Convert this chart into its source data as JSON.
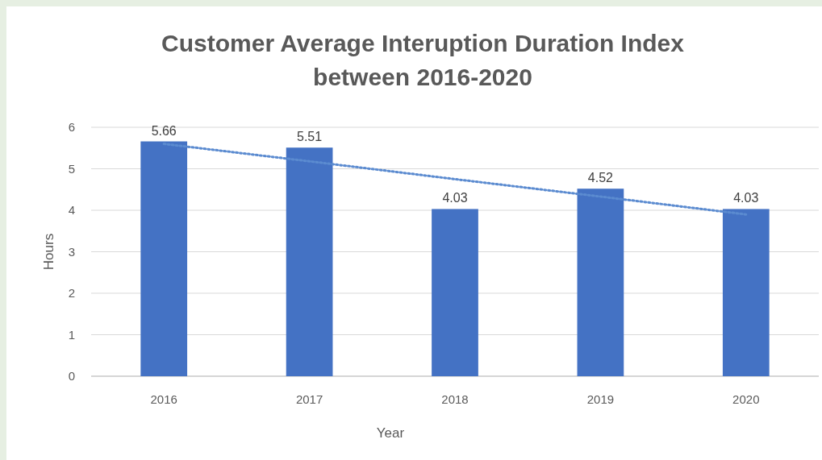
{
  "chart_data": {
    "type": "bar",
    "title": "Customer Average Interuption Duration Index between 2016-2020",
    "xlabel": "Year",
    "ylabel": "Hours",
    "categories": [
      "2016",
      "2017",
      "2018",
      "2019",
      "2020"
    ],
    "series": [
      {
        "color": "#4472c4",
        "values": [
          5.66,
          5.51,
          4.03,
          4.52,
          4.03
        ],
        "value_labels": [
          "5.66",
          "5.51",
          "4.03",
          "4.52",
          "4.03"
        ]
      },
      {
        "type": "line",
        "color": "#5b8bd0",
        "values": [
          5.6,
          5.18,
          4.75,
          4.33,
          3.9
        ],
        "line_style": "dotted",
        "marker": "none"
      }
    ],
    "ylim": [
      0,
      6
    ],
    "yticks": [
      0,
      1,
      2,
      3,
      4,
      5,
      6
    ],
    "grid": "y"
  }
}
